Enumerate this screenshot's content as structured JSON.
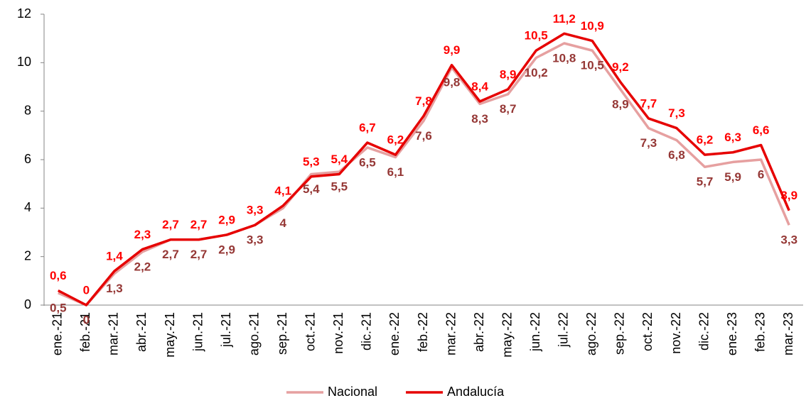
{
  "chart_data": {
    "type": "line",
    "categories": [
      "ene.-21",
      "feb.-21",
      "mar.-21",
      "abr.-21",
      "may.-21",
      "jun.-21",
      "jul.-21",
      "ago.-21",
      "sep.-21",
      "oct.-21",
      "nov.-21",
      "dic.-21",
      "ene.-22",
      "feb.-22",
      "mar.-22",
      "abr.-22",
      "may.-22",
      "jun.-22",
      "jul.-22",
      "ago.-22",
      "sep.-22",
      "oct.-22",
      "nov.-22",
      "dic.-22",
      "ene.-23",
      "feb.-23",
      "mar.-23"
    ],
    "series": [
      {
        "name": "Nacional",
        "color": "#e6a0a0",
        "label_color": "#953735",
        "values": [
          0.5,
          0,
          1.3,
          2.2,
          2.7,
          2.7,
          2.9,
          3.3,
          4,
          5.4,
          5.5,
          6.5,
          6.1,
          7.6,
          9.8,
          8.3,
          8.7,
          10.2,
          10.8,
          10.5,
          8.9,
          7.3,
          6.8,
          5.7,
          5.9,
          6,
          3.3
        ],
        "value_labels": [
          "0,5",
          "0",
          "1,3",
          "2,2",
          "2,7",
          "2,7",
          "2,9",
          "3,3",
          "4",
          "5,4",
          "5,5",
          "6,5",
          "6,1",
          "7,6",
          "9,8",
          "8,3",
          "8,7",
          "10,2",
          "10,8",
          "10,5",
          "8,9",
          "7,3",
          "6,8",
          "5,7",
          "5,9",
          "6",
          "3,3"
        ]
      },
      {
        "name": "Andalucía",
        "color": "#e60000",
        "label_color": "#ff0000",
        "values": [
          0.6,
          0,
          1.4,
          2.3,
          2.7,
          2.7,
          2.9,
          3.3,
          4.1,
          5.3,
          5.4,
          6.7,
          6.2,
          7.8,
          9.9,
          8.4,
          8.9,
          10.5,
          11.2,
          10.9,
          9.2,
          7.7,
          7.3,
          6.2,
          6.3,
          6.6,
          3.9
        ],
        "value_labels": [
          "0,6",
          "0",
          "1,4",
          "2,3",
          "2,7",
          "2,7",
          "2,9",
          "3,3",
          "4,1",
          "5,3",
          "5,4",
          "6,7",
          "6,2",
          "7,8",
          "9,9",
          "8,4",
          "8,9",
          "10,5",
          "11,2",
          "10,9",
          "9,2",
          "7,7",
          "7,3",
          "6,2",
          "6,3",
          "6,6",
          "3,9"
        ]
      }
    ],
    "ylim": [
      0,
      12
    ],
    "yticks": [
      0,
      2,
      4,
      6,
      8,
      10,
      12
    ],
    "grid": false,
    "legend": "bottom"
  }
}
